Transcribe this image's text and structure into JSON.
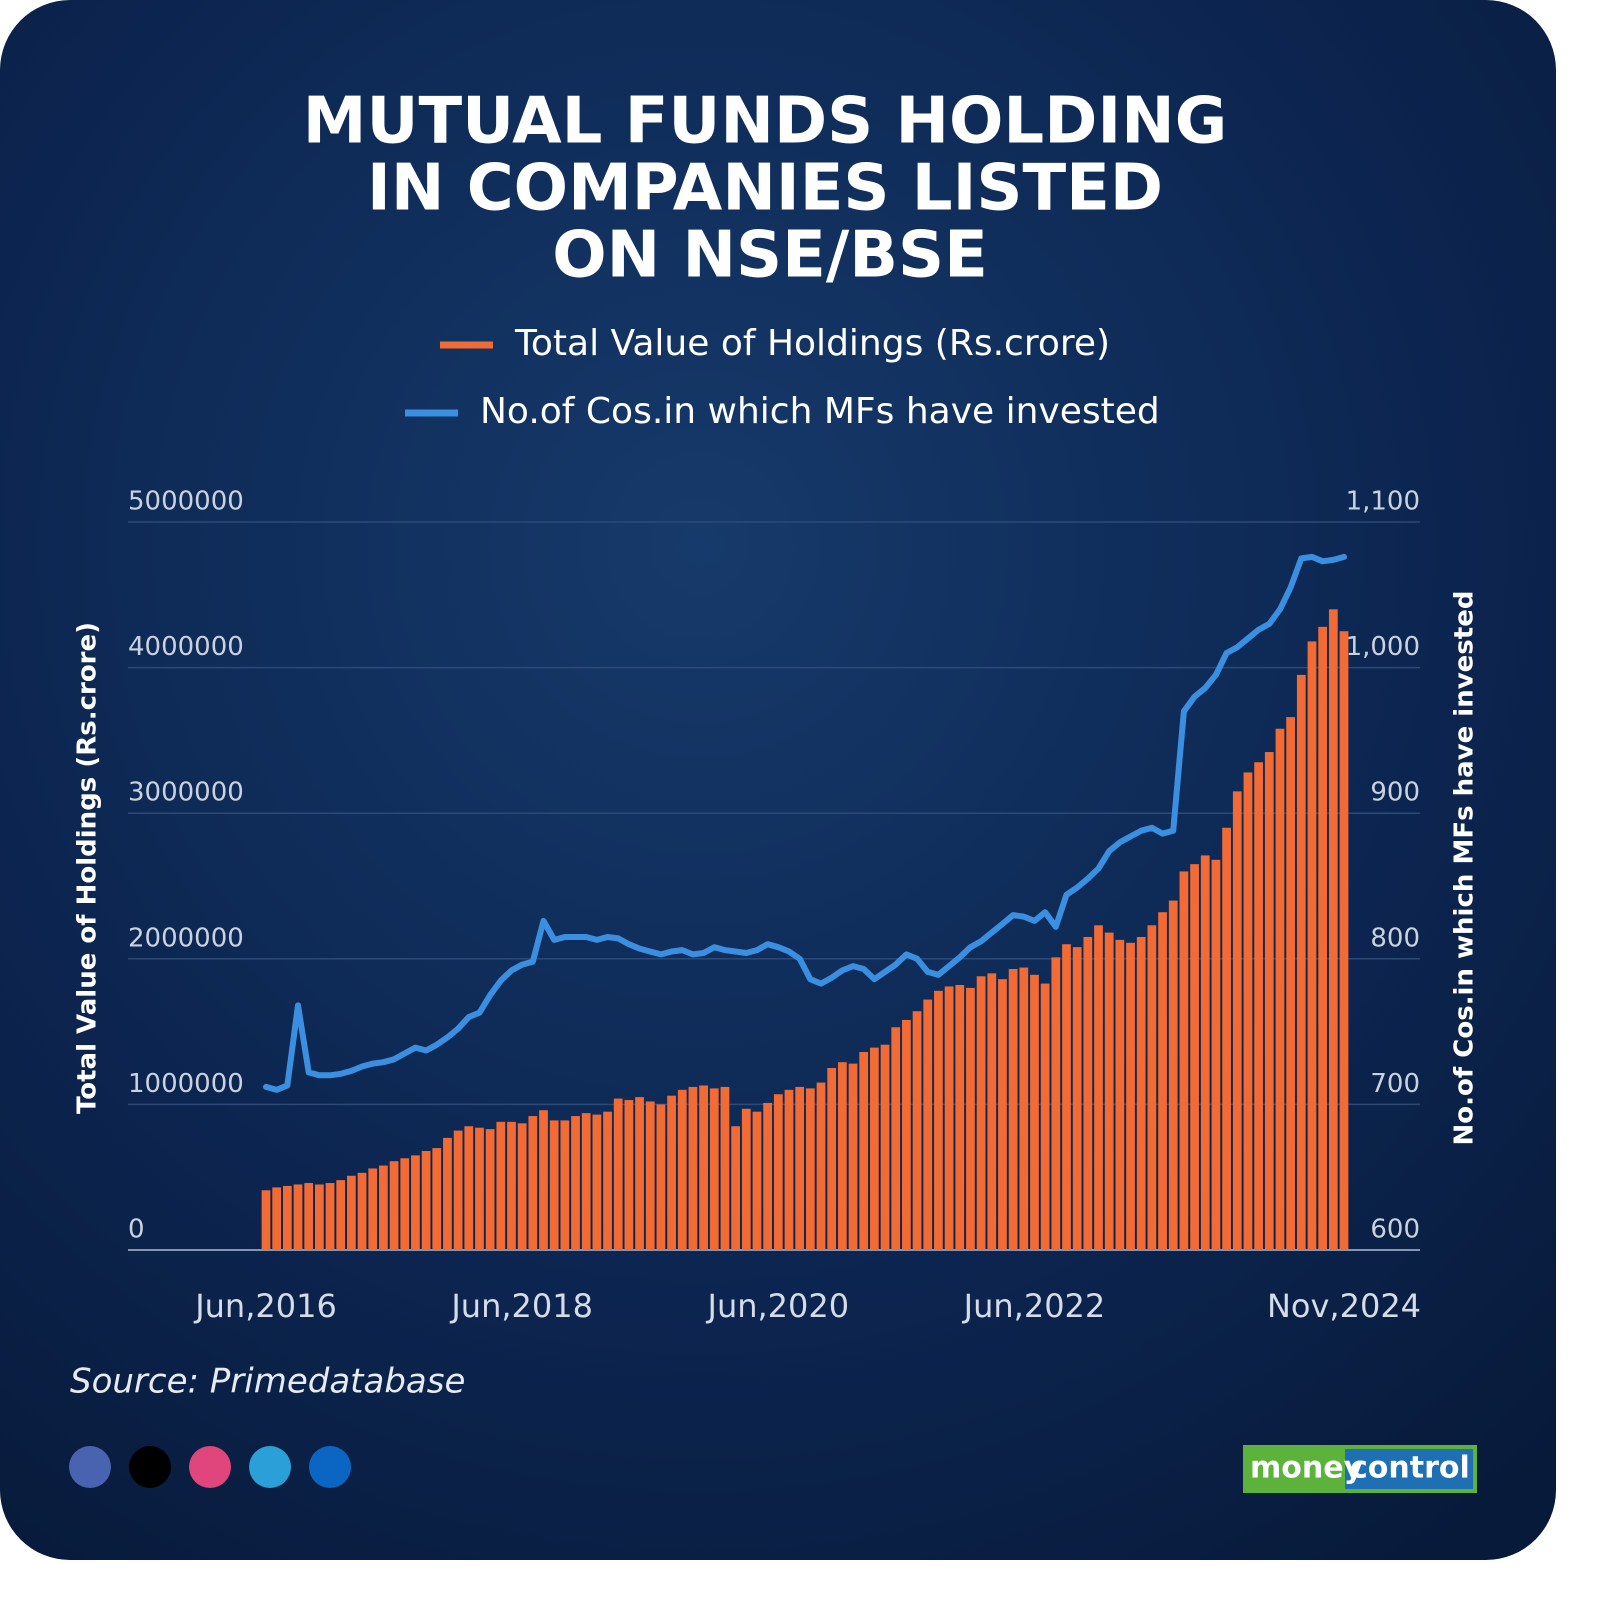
{
  "chart_data": {
    "type": "bar",
    "title": [
      "MUTUAL FUNDS HOLDING",
      "IN COMPANIES LISTED",
      "ON NSE/BSE"
    ],
    "ylabel": "Total Value of Holdings (Rs.crore)",
    "y2label": "No.of Cos.in which MFs have invested",
    "source": "Source: Primedatabase",
    "categories": [
      "Jun,2016",
      null,
      null,
      null,
      null,
      null,
      null,
      null,
      null,
      null,
      null,
      null,
      null,
      null,
      null,
      null,
      null,
      null,
      null,
      null,
      null,
      null,
      null,
      null,
      "Jun,2018",
      null,
      null,
      null,
      null,
      null,
      null,
      null,
      null,
      null,
      null,
      null,
      null,
      null,
      null,
      null,
      null,
      null,
      null,
      null,
      null,
      null,
      null,
      null,
      "Jun,2020",
      null,
      null,
      null,
      null,
      null,
      null,
      null,
      null,
      null,
      null,
      null,
      null,
      null,
      null,
      null,
      null,
      null,
      null,
      null,
      null,
      null,
      null,
      null,
      "Jun,2022",
      null,
      null,
      null,
      null,
      null,
      null,
      null,
      null,
      null,
      null,
      null,
      null,
      null,
      null,
      null,
      null,
      null,
      null,
      null,
      null,
      null,
      null,
      null,
      null,
      null,
      null,
      null,
      null,
      "Nov,2024"
    ],
    "series": [
      {
        "name": "Total Value of Holdings (Rs.crore)",
        "color": "#f26b35",
        "values": [
          410000,
          430000,
          440000,
          450000,
          460000,
          450000,
          460000,
          480000,
          510000,
          530000,
          560000,
          580000,
          610000,
          630000,
          650000,
          680000,
          700000,
          770000,
          820000,
          850000,
          840000,
          830000,
          880000,
          880000,
          870000,
          920000,
          960000,
          890000,
          890000,
          920000,
          940000,
          930000,
          950000,
          1040000,
          1030000,
          1050000,
          1020000,
          1000000,
          1060000,
          1100000,
          1120000,
          1130000,
          1110000,
          1120000,
          850000,
          970000,
          950000,
          1010000,
          1070000,
          1100000,
          1120000,
          1110000,
          1150000,
          1250000,
          1290000,
          1280000,
          1360000,
          1390000,
          1410000,
          1530000,
          1580000,
          1640000,
          1720000,
          1780000,
          1810000,
          1820000,
          1800000,
          1880000,
          1900000,
          1860000,
          1930000,
          1940000,
          1890000,
          1830000,
          2010000,
          2100000,
          2080000,
          2150000,
          2230000,
          2180000,
          2130000,
          2110000,
          2150000,
          2230000,
          2320000,
          2400000,
          2600000,
          2650000,
          2710000,
          2680000,
          2900000,
          3150000,
          3280000,
          3350000,
          3420000,
          3580000,
          3660000,
          3950000,
          4180000,
          4280000,
          4400000,
          4250000
        ]
      },
      {
        "name": "No.of Cos.in which MFs have invested",
        "color": "#3b8fe0",
        "type": "line",
        "axis": "y2",
        "values": [
          712,
          710,
          713,
          768,
          722,
          720,
          720,
          721,
          723,
          726,
          728,
          729,
          731,
          735,
          739,
          737,
          741,
          746,
          752,
          760,
          763,
          775,
          785,
          792,
          796,
          798,
          826,
          813,
          815,
          815,
          815,
          813,
          815,
          814,
          810,
          807,
          805,
          803,
          805,
          806,
          803,
          804,
          808,
          806,
          805,
          804,
          806,
          810,
          808,
          805,
          800,
          786,
          783,
          787,
          792,
          795,
          793,
          786,
          791,
          796,
          803,
          800,
          791,
          789,
          795,
          801,
          808,
          812,
          818,
          824,
          830,
          829,
          826,
          832,
          822,
          844,
          849,
          855,
          862,
          874,
          880,
          884,
          888,
          890,
          886,
          888,
          970,
          980,
          986,
          995,
          1010,
          1014,
          1020,
          1026,
          1030,
          1040,
          1055,
          1075,
          1076,
          1073,
          1074,
          1076
        ]
      }
    ],
    "ylim": [
      0,
      5000000
    ],
    "yticks": [
      0,
      1000000,
      2000000,
      3000000,
      4000000,
      5000000
    ],
    "y2lim": [
      600,
      1100
    ],
    "y2ticks": [
      600,
      700,
      800,
      900,
      {
        "value": 1000,
        "label": "1,000"
      },
      {
        "value": 1100,
        "label": "1,100"
      }
    ],
    "grid": true
  },
  "branding": {
    "logo": [
      "money",
      "control"
    ]
  }
}
